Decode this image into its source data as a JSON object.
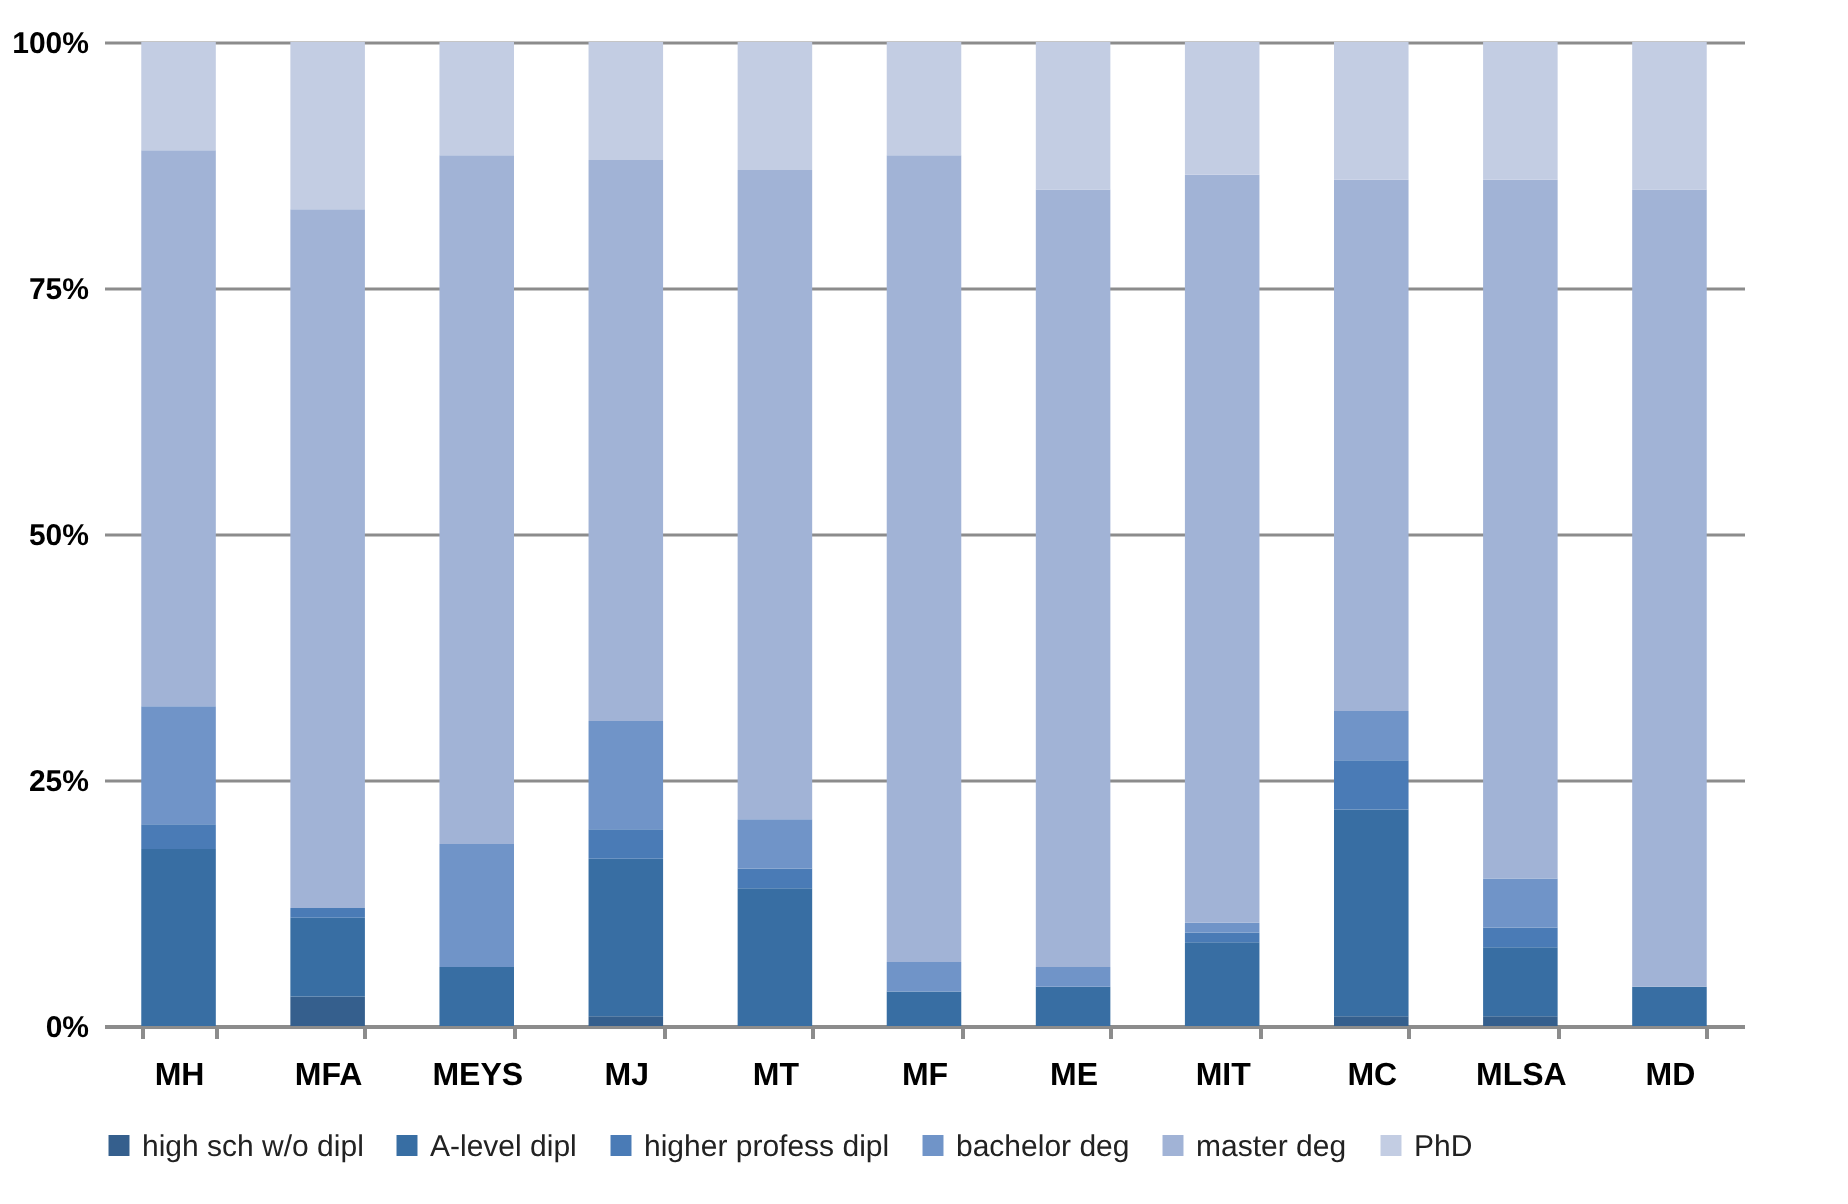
{
  "chart_data": {
    "type": "bar",
    "stacked": true,
    "categories": [
      "MH",
      "MFA",
      "MEYS",
      "MJ",
      "MT",
      "MF",
      "ME",
      "MIT",
      "MC",
      "MLSA",
      "MD"
    ],
    "series": [
      {
        "name": "high sch w/o dipl",
        "color": "#355f8d",
        "values": [
          0,
          3,
          0,
          1,
          0,
          0,
          0,
          0,
          1,
          1,
          0
        ]
      },
      {
        "name": "A-level dipl",
        "color": "#386ea3",
        "values": [
          18,
          8,
          6,
          16,
          14,
          3.5,
          4,
          8.5,
          21,
          7,
          4
        ]
      },
      {
        "name": "higher profess dipl",
        "color": "#4a7bb6",
        "values": [
          2.5,
          1,
          0,
          3,
          2,
          0,
          0,
          1,
          5,
          2,
          0
        ]
      },
      {
        "name": "bachelor deg",
        "color": "#7094c8",
        "values": [
          12,
          0,
          12.5,
          11,
          5,
          3,
          2,
          1,
          5,
          5,
          0
        ]
      },
      {
        "name": "master deg",
        "color": "#a1b3d6",
        "values": [
          56.5,
          71,
          70,
          57,
          66,
          82,
          79,
          76,
          54,
          71,
          81
        ]
      },
      {
        "name": "PhD",
        "color": "#c3cde3",
        "values": [
          11,
          17,
          11.5,
          12,
          13,
          11.5,
          15,
          13.5,
          14,
          14,
          15
        ]
      }
    ],
    "ylim": [
      0,
      100
    ],
    "yticks": [
      {
        "value": 0,
        "label": "0%"
      },
      {
        "value": 25,
        "label": "25%"
      },
      {
        "value": 50,
        "label": "50%"
      },
      {
        "value": 75,
        "label": "75%"
      },
      {
        "value": 100,
        "label": "100%"
      }
    ],
    "grid": "y",
    "legend": "bottom"
  }
}
